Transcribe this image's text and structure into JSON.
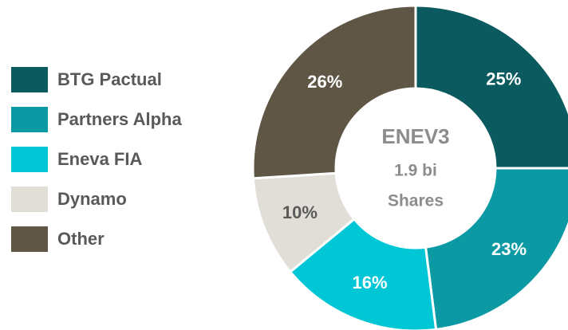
{
  "chart_data": {
    "type": "donut",
    "categories": [
      "BTG Pactual",
      "Partners Alpha",
      "Eneva FIA",
      "Dynamo",
      "Other"
    ],
    "values": [
      25,
      23,
      16,
      10,
      26
    ],
    "value_labels": [
      "25%",
      "23%",
      "16%",
      "10%",
      "26%"
    ],
    "colors": [
      "#0b5a5f",
      "#0b9aa4",
      "#00c6d6",
      "#e1ded7",
      "#5f5646"
    ],
    "center_text": [
      "ENEV3",
      "1.9 bi",
      "Shares"
    ],
    "legend": "left"
  }
}
